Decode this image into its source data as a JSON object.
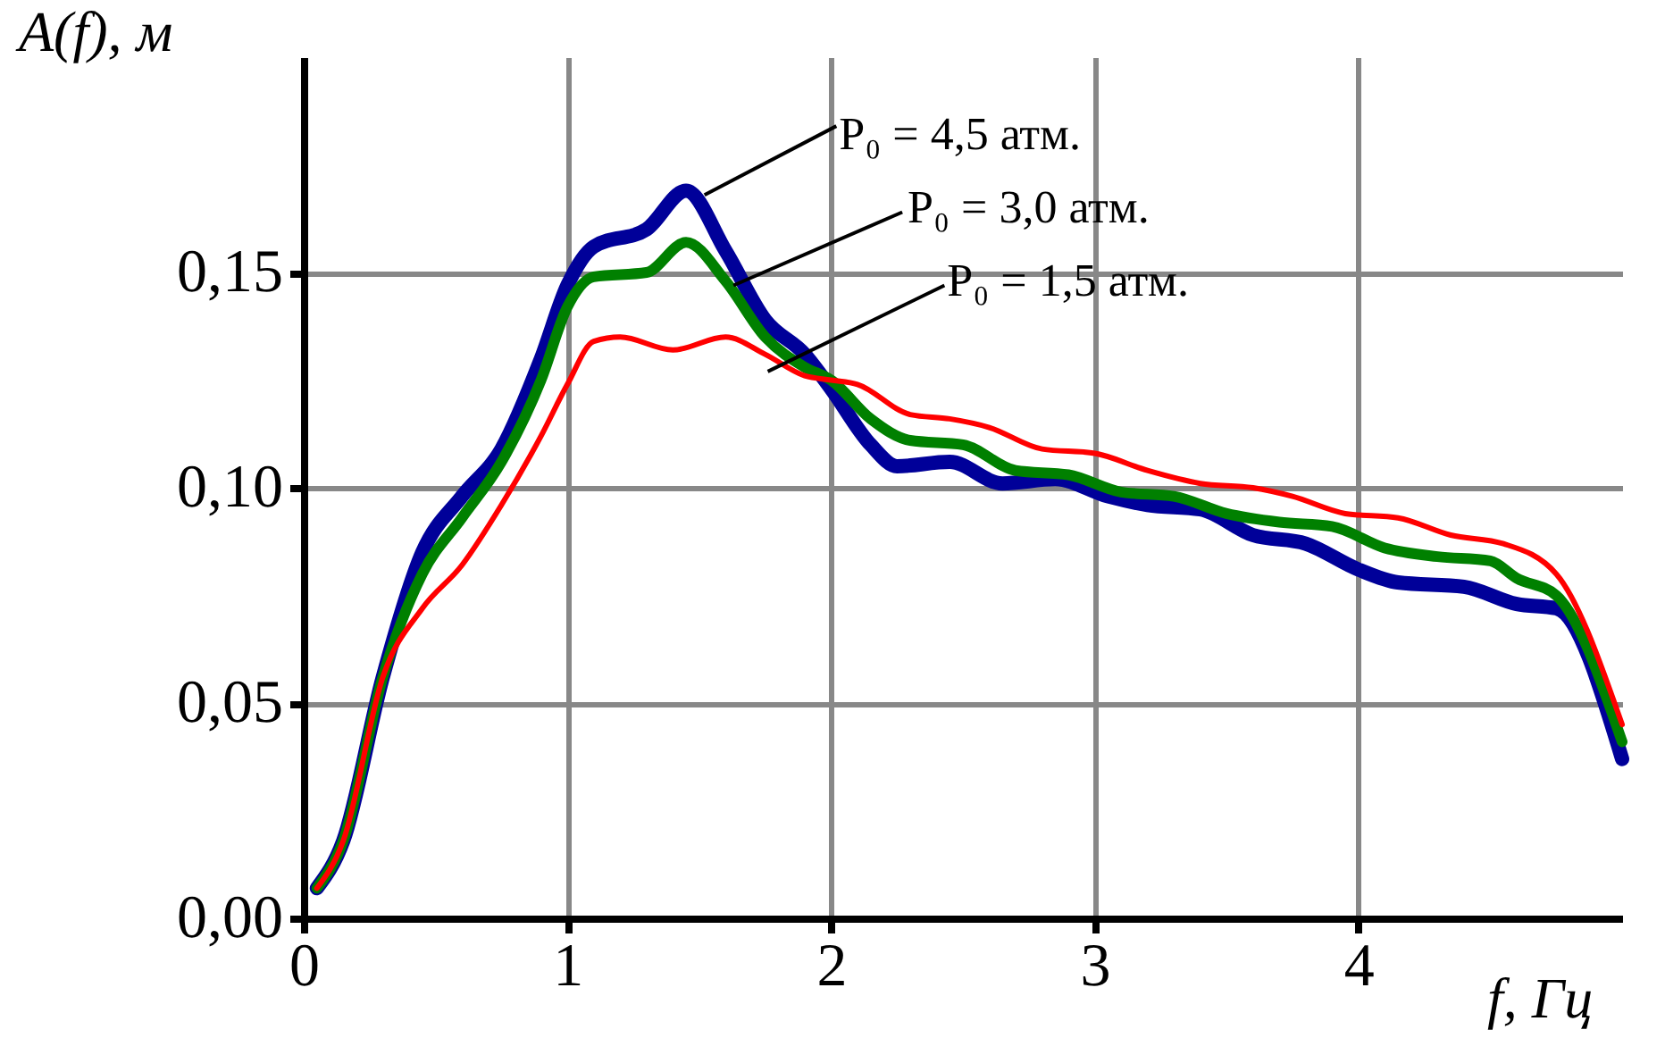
{
  "chart_data": {
    "type": "line",
    "xlabel": "f, Гц",
    "ylabel": "A(f), м",
    "xlim": [
      0,
      5
    ],
    "xticks": [
      0,
      1,
      2,
      3,
      4
    ],
    "ylim": [
      0,
      0.2
    ],
    "yticks": [
      {
        "value": 0,
        "label": "0,00"
      },
      {
        "value": 0.05,
        "label": "0,05"
      },
      {
        "value": 0.1,
        "label": "0,10"
      },
      {
        "value": 0.15,
        "label": "0,15"
      }
    ],
    "grid": true,
    "series": [
      {
        "name": "P₀ = 4,5 атм.",
        "color": "#000099",
        "x": [
          0.05,
          0.15,
          0.3,
          0.45,
          0.6,
          0.75,
          0.9,
          1.0,
          1.1,
          1.3,
          1.45,
          1.6,
          1.75,
          1.9,
          2.0,
          2.15,
          2.25,
          2.45,
          2.65,
          2.85,
          3.05,
          3.2,
          3.4,
          3.6,
          3.8,
          4.0,
          4.15,
          4.4,
          4.6,
          4.75,
          5.0
        ],
        "values": [
          0.007,
          0.018,
          0.056,
          0.085,
          0.098,
          0.109,
          0.13,
          0.147,
          0.156,
          0.16,
          0.169,
          0.155,
          0.139,
          0.131,
          0.123,
          0.11,
          0.105,
          0.106,
          0.101,
          0.102,
          0.098,
          0.096,
          0.095,
          0.089,
          0.087,
          0.081,
          0.078,
          0.077,
          0.073,
          0.072,
          0.037
        ]
      },
      {
        "name": "P₀ = 3,0 атм.",
        "color": "#008000",
        "x": [
          0.05,
          0.15,
          0.3,
          0.45,
          0.6,
          0.75,
          0.9,
          1.0,
          1.1,
          1.3,
          1.45,
          1.6,
          1.75,
          1.9,
          2.0,
          2.15,
          2.3,
          2.5,
          2.7,
          2.9,
          3.1,
          3.3,
          3.5,
          3.7,
          3.9,
          4.1,
          4.3,
          4.5,
          4.6,
          4.75,
          5.0
        ],
        "values": [
          0.007,
          0.018,
          0.056,
          0.08,
          0.093,
          0.106,
          0.125,
          0.142,
          0.149,
          0.15,
          0.157,
          0.148,
          0.135,
          0.128,
          0.125,
          0.116,
          0.111,
          0.11,
          0.104,
          0.103,
          0.099,
          0.098,
          0.094,
          0.092,
          0.091,
          0.086,
          0.084,
          0.083,
          0.079,
          0.075,
          0.041
        ]
      },
      {
        "name": "P₀ = 1,5 атм.",
        "color": "#ff0000",
        "x": [
          0.05,
          0.15,
          0.3,
          0.45,
          0.6,
          0.75,
          0.9,
          1.0,
          1.1,
          1.2,
          1.4,
          1.6,
          1.75,
          1.9,
          2.0,
          2.1,
          2.3,
          2.45,
          2.6,
          2.8,
          3.0,
          3.2,
          3.4,
          3.6,
          3.75,
          3.95,
          4.15,
          4.35,
          4.55,
          4.75,
          5.0
        ],
        "values": [
          0.007,
          0.018,
          0.056,
          0.072,
          0.082,
          0.096,
          0.112,
          0.124,
          0.134,
          0.135,
          0.132,
          0.135,
          0.131,
          0.126,
          0.125,
          0.124,
          0.117,
          0.116,
          0.114,
          0.109,
          0.108,
          0.104,
          0.101,
          0.1,
          0.098,
          0.094,
          0.093,
          0.089,
          0.087,
          0.08,
          0.045
        ]
      }
    ]
  }
}
